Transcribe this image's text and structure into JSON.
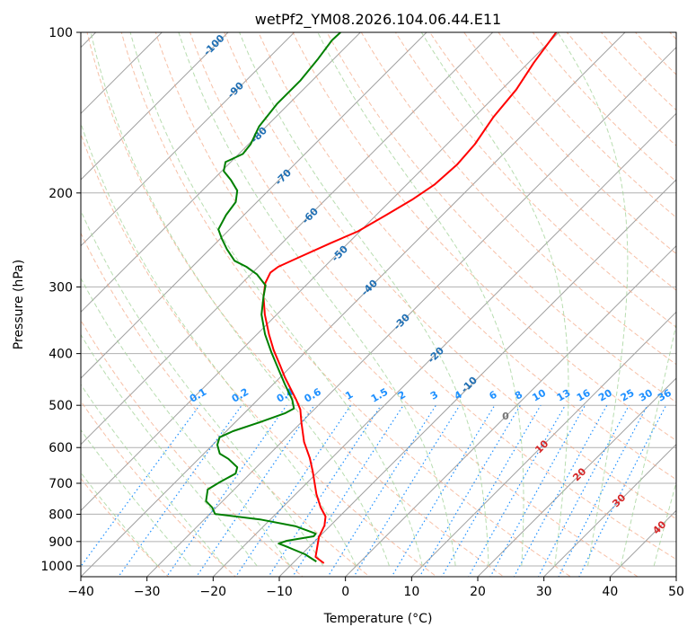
{
  "chart_data": {
    "type": "line",
    "title": "wetPf2_YM08.2026.104.06.44.E11",
    "xlabel": "Temperature (°C)",
    "ylabel": "Pressure (hPa)",
    "xlim": [
      -40,
      50
    ],
    "ylim": [
      1050,
      100
    ],
    "x_ticks": [
      "−40",
      "−30",
      "−20",
      "−10",
      "0",
      "10",
      "20",
      "30",
      "40",
      "50"
    ],
    "x_tick_values": [
      -40,
      -30,
      -20,
      -10,
      0,
      10,
      20,
      30,
      40,
      50
    ],
    "y_ticks": [
      "100",
      "200",
      "300",
      "400",
      "500",
      "600",
      "700",
      "800",
      "900",
      "1000"
    ],
    "y_tick_values": [
      100,
      200,
      300,
      400,
      500,
      600,
      700,
      800,
      900,
      1000
    ],
    "grid": true,
    "colors": {
      "temperature": "#ff0000",
      "dewpoint": "#008000",
      "isotherm": "#a0a0a0",
      "dry_adiabat": "#f4a582",
      "moist_adiabat": "#a6d49c",
      "mixing_ratio": "#1e90ff",
      "isotherm_label": "#1f6fb4"
    },
    "series": [
      {
        "name": "temperature",
        "pressure": [
          988,
          962,
          883,
          840,
          808,
          777,
          733,
          666,
          628,
          586,
          538,
          509,
          488,
          443,
          421,
          394,
          368,
          338,
          313,
          295,
          282,
          275,
          266,
          248,
          236,
          220,
          206,
          193,
          177,
          162,
          144,
          128,
          114,
          100
        ],
        "temperature": [
          -5.3,
          -7.5,
          -10.0,
          -10.9,
          -12.1,
          -14.2,
          -16.9,
          -20.8,
          -23.3,
          -26.6,
          -30.0,
          -32.1,
          -34.2,
          -39.3,
          -41.8,
          -45.1,
          -48.2,
          -51.8,
          -54.7,
          -56.5,
          -57.3,
          -57.0,
          -55.6,
          -52.6,
          -50.3,
          -48.5,
          -46.9,
          -45.8,
          -45.4,
          -45.8,
          -47.1,
          -47.8,
          -49.2,
          -50.4
        ]
      },
      {
        "name": "dewpoint",
        "pressure": [
          981,
          951,
          918,
          908,
          897,
          880,
          870,
          843,
          818,
          799,
          777,
          756,
          719,
          697,
          671,
          653,
          630,
          616,
          593,
          574,
          559,
          538,
          517,
          507,
          488,
          457,
          426,
          397,
          368,
          338,
          313,
          298,
          284,
          275,
          268,
          255,
          243,
          234,
          220,
          208,
          198,
          189,
          182,
          175,
          169,
          162,
          150,
          136,
          123,
          112,
          103.5,
          100
        ],
        "temperature": [
          -6.7,
          -9.5,
          -13.7,
          -15.1,
          -14.3,
          -10.9,
          -11.0,
          -15.1,
          -21.6,
          -29.2,
          -30.6,
          -32.5,
          -34.0,
          -33.3,
          -32.2,
          -32.9,
          -35.5,
          -37.6,
          -39.3,
          -40.1,
          -39.0,
          -36.3,
          -33.8,
          -33.2,
          -34.8,
          -38.2,
          -41.7,
          -45.2,
          -48.8,
          -52.3,
          -54.7,
          -56.1,
          -59.1,
          -61.8,
          -64.5,
          -67.4,
          -69.9,
          -71.7,
          -72.7,
          -73.2,
          -74.7,
          -77.3,
          -79.7,
          -80.8,
          -79.4,
          -79.7,
          -81.1,
          -81.8,
          -81.8,
          -82.4,
          -83.1,
          -83.0
        ]
      }
    ],
    "isotherm_labels": [
      "-100",
      "-90",
      "-80",
      "-70",
      "-60",
      "-50",
      "-40",
      "-30",
      "-20",
      "-10"
    ],
    "mixing_ratio_labels": [
      "0.1",
      "0.2",
      "0.4",
      "0.6",
      "1",
      "1.5",
      "2",
      "3",
      "4",
      "6",
      "8",
      "10",
      "13",
      "16",
      "20",
      "25",
      "30",
      "36"
    ],
    "mixing_ratio_values": [
      0.1,
      0.2,
      0.4,
      0.6,
      1,
      1.5,
      2,
      3,
      4,
      6,
      8,
      10,
      13,
      16,
      20,
      25,
      30,
      36
    ],
    "adiabat_labels": [
      "10",
      "20",
      "30",
      "40"
    ],
    "zero_label": "0"
  }
}
